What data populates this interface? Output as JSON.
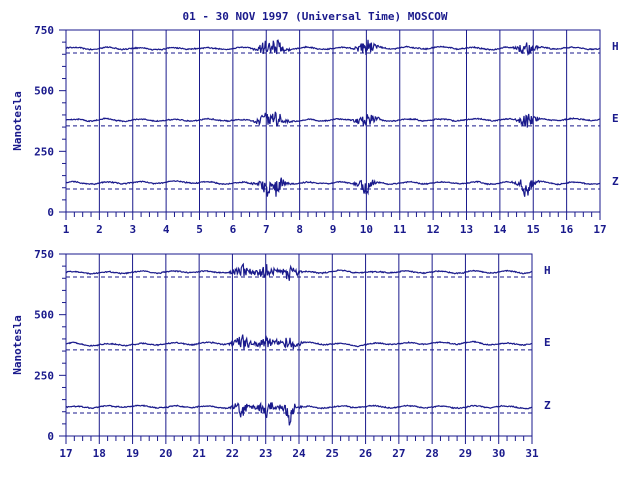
{
  "title": "01 - 30 NOV 1997 (Universal Time) MOSCOW",
  "colors": {
    "ink": "#1a1a8c",
    "background": "#ffffff"
  },
  "chart_data": [
    {
      "type": "line",
      "panel": "top",
      "title": "01 - 30 NOV 1997 (Universal Time) MOSCOW",
      "ylabel": "Nanotesla",
      "xlabel": "",
      "x_ticks": [
        "1",
        "2",
        "3",
        "4",
        "5",
        "6",
        "7",
        "8",
        "9",
        "10",
        "11",
        "12",
        "13",
        "14",
        "15",
        "16",
        "17"
      ],
      "xlim": [
        1,
        17
      ],
      "y_ticks": [
        "0",
        "250",
        "500",
        "750"
      ],
      "ylim": [
        0,
        750
      ],
      "grid": "vertical lines at each day",
      "series": [
        {
          "name": "H",
          "baseline": 655,
          "level": 675,
          "disturbed_days": [
            7,
            7.3,
            10,
            14.8
          ]
        },
        {
          "name": "E",
          "baseline": 355,
          "level": 380,
          "disturbed_days": [
            7,
            7.3,
            10,
            14.8
          ]
        },
        {
          "name": "Z",
          "baseline": 95,
          "level": 120,
          "disturbed_days": [
            7,
            7.3,
            10,
            14.8
          ]
        }
      ]
    },
    {
      "type": "line",
      "panel": "bottom",
      "title": "",
      "ylabel": "Nanotesla",
      "xlabel": "",
      "x_ticks": [
        "17",
        "18",
        "19",
        "20",
        "21",
        "22",
        "23",
        "24",
        "25",
        "26",
        "27",
        "28",
        "29",
        "30",
        "31"
      ],
      "xlim": [
        17,
        31
      ],
      "y_ticks": [
        "0",
        "250",
        "500",
        "750"
      ],
      "ylim": [
        0,
        750
      ],
      "grid": "vertical lines at each day",
      "series": [
        {
          "name": "H",
          "baseline": 655,
          "level": 675,
          "disturbed_days": [
            22.3,
            23,
            23.7
          ]
        },
        {
          "name": "E",
          "baseline": 355,
          "level": 380,
          "disturbed_days": [
            22.3,
            23,
            23.7
          ]
        },
        {
          "name": "Z",
          "baseline": 95,
          "level": 120,
          "disturbed_days": [
            22.3,
            23,
            23.7
          ]
        }
      ]
    }
  ]
}
